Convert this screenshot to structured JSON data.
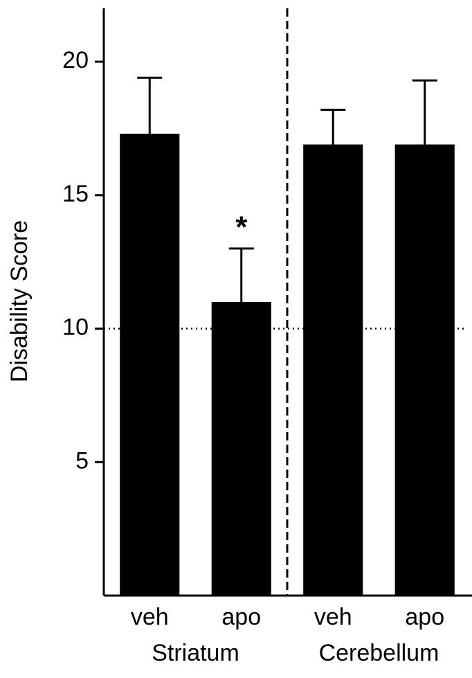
{
  "chart_data": {
    "type": "bar",
    "y_label": "Disability Score",
    "categories": [
      "veh",
      "apo",
      "veh",
      "apo"
    ],
    "group_labels": [
      "Striatum",
      "Cerebellum"
    ],
    "values": [
      17.3,
      11.0,
      16.9,
      16.9
    ],
    "errors": [
      2.1,
      2.0,
      1.3,
      2.4
    ],
    "significance": [
      null,
      "*",
      null,
      null
    ],
    "reference_line": 10,
    "color": "#000000",
    "ylim": [
      0,
      22
    ],
    "yticks": [
      5,
      10,
      15,
      20
    ],
    "grid": false
  }
}
